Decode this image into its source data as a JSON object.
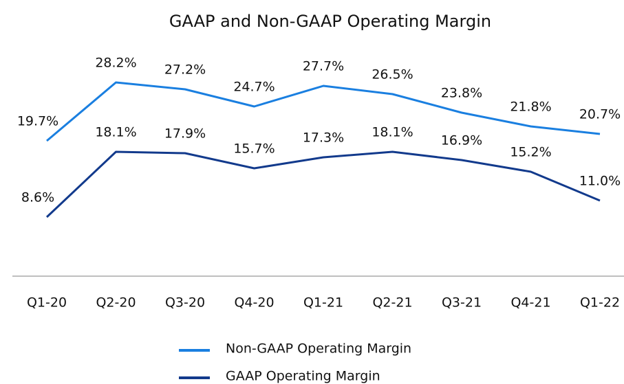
{
  "chart_data": {
    "type": "line",
    "title": "GAAP and Non-GAAP Operating Margin",
    "categories": [
      "Q1-20",
      "Q2-20",
      "Q3-20",
      "Q4-20",
      "Q1-21",
      "Q2-21",
      "Q3-21",
      "Q4-21",
      "Q1-22"
    ],
    "series": [
      {
        "name": "Non-GAAP Operating Margin",
        "color": "#1a7fe0",
        "values": [
          19.7,
          28.2,
          27.2,
          24.7,
          27.7,
          26.5,
          23.8,
          21.8,
          20.7
        ],
        "value_labels": [
          "19.7%",
          "28.2%",
          "27.2%",
          "24.7%",
          "27.7%",
          "26.5%",
          "23.8%",
          "21.8%",
          "20.7%"
        ]
      },
      {
        "name": "GAAP Operating Margin",
        "color": "#123a8c",
        "values": [
          8.6,
          18.1,
          17.9,
          15.7,
          17.3,
          18.1,
          16.9,
          15.2,
          11.0
        ],
        "value_labels": [
          "8.6%",
          "18.1%",
          "17.9%",
          "15.7%",
          "17.3%",
          "18.1%",
          "16.9%",
          "15.2%",
          "11.0%"
        ]
      }
    ],
    "ylim": [
      0,
      32
    ]
  }
}
